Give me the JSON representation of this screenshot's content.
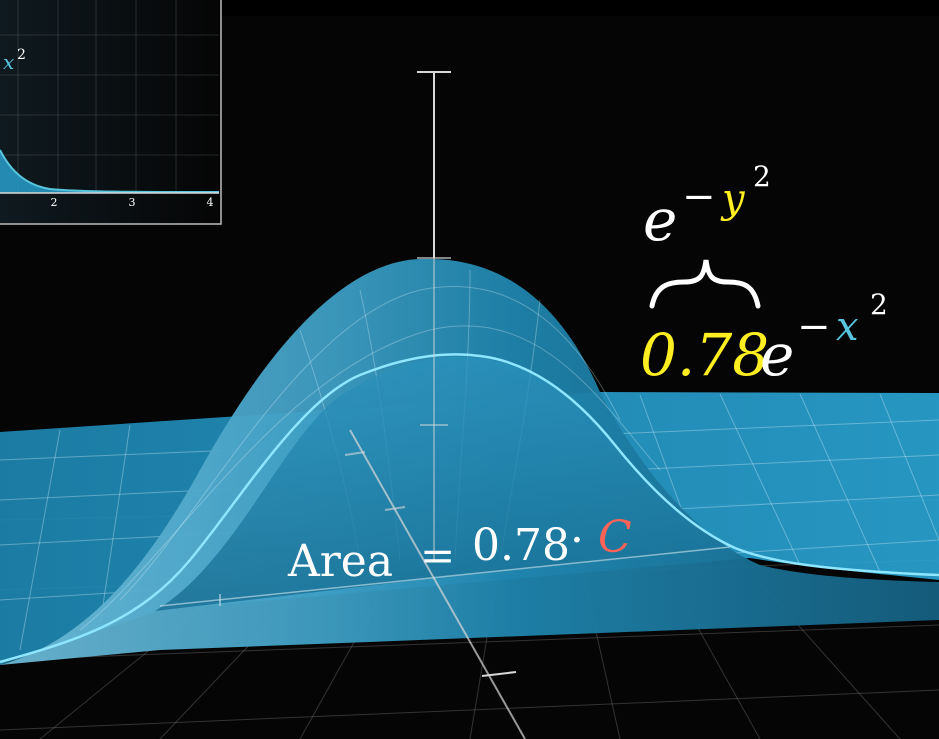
{
  "colors": {
    "background": "#050505",
    "surface": "#2aa6d6",
    "surface_dark": "#146e92",
    "curve": "#8fe6ff",
    "grid": "#d9f4ff",
    "axis": "#d8d8d8",
    "text_white": "#ffffff",
    "text_yellow": "#ffee22",
    "text_blue": "#58c4dd",
    "text_red": "#fc6255",
    "inset_border": "#bdbdbd"
  },
  "inset_plot": {
    "x_ticks": [
      "2",
      "3",
      "4"
    ],
    "label_base": "x",
    "label_exponent": "2"
  },
  "labels": {
    "top": {
      "base": "e",
      "minus": "−",
      "var": "y",
      "power": "2"
    },
    "brace": "⏟",
    "bottom": {
      "coefficient": "0.78",
      "base": "e",
      "minus": "−",
      "var": "x",
      "power": "2"
    },
    "area": {
      "word": "Area",
      "equals": "=",
      "value": "0.78",
      "dot": "·",
      "constant": "C"
    }
  }
}
